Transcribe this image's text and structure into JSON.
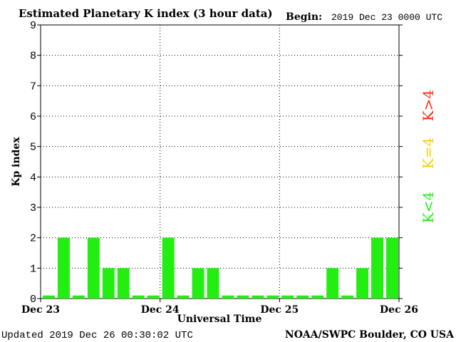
{
  "header": {
    "title": "Estimated Planetary K index (3 hour data)",
    "begin_label": "Begin:",
    "begin_value": "2019 Dec 23 0000 UTC"
  },
  "footer": {
    "updated": "Updated 2019 Dec 26 00:30:02 UTC",
    "source": "NOAA/SWPC Boulder, CO USA"
  },
  "legend": {
    "above": "K>4",
    "equal": "K=4",
    "below": "K<4"
  },
  "colors": {
    "below": "#22ee11",
    "equal": "#f5d000",
    "above": "#ff2a10",
    "axis": "#000000",
    "grid": "#000000"
  },
  "chart_data": {
    "type": "bar",
    "ylabel": "Kp index",
    "xlabel": "Universal Time",
    "ylim": [
      0,
      9
    ],
    "yticks": [
      "0",
      "1",
      "2",
      "3",
      "4",
      "5",
      "6",
      "7",
      "8",
      "9"
    ],
    "xticks": [
      "Dec 23",
      "Dec 24",
      "Dec 25",
      "Dec 26"
    ],
    "grid": true,
    "interval_hours": 3,
    "values": [
      0,
      2,
      0,
      2,
      1,
      1,
      0,
      0,
      2,
      0,
      1,
      1,
      0,
      0,
      0,
      0,
      0,
      0,
      0,
      1,
      0,
      1,
      2,
      2
    ]
  }
}
